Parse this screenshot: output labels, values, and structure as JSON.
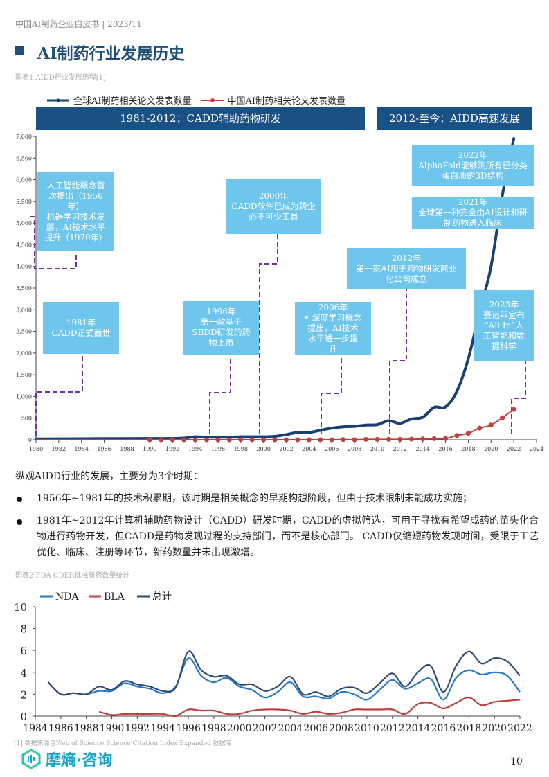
{
  "header": {
    "doc_title": "中国AI制药企业白皮书 | 2023/11",
    "section_title": "AI制药行业发展历史",
    "page_number": "10"
  },
  "figure1": {
    "caption": "图表1 AIDD行业发展历程[1]",
    "legend": [
      "全球AI制药相关论文发表数量",
      "中国AI制药相关论文发表数量"
    ],
    "bands": [
      "1981-2012：CADD辅助药物研发",
      "2012-至今：AIDD高速发展"
    ],
    "notes": [
      "人工智能概念首\n次提出（1956年）\n机器学习技术发\n展，AI技术水平\n提升（1970年）",
      "1981年\nCADD正式面世",
      "1996年\n第一款基于\nSBDD研发的药\n物上市",
      "2000年\nCADD软件已成为药企\n必不可少工具",
      "2006年\n•  深度学习概念\n提出，AI技术\n水平进一步提\n升",
      "2012年\n第一家AI用于药物研发商业\n化公司成立",
      "2022年\nAlphaFold能够测所有已分类\n蛋白质的3D结构",
      "2021年\n全球第一种完全由AI设计和研\n制药物进入临床",
      "2023年\n赛诺菲宣布\n“All In”人\n工智能和数\n据科学"
    ]
  },
  "text": {
    "intro": "纵观AIDD行业的发展，主要分为3个时期：",
    "bullets": [
      "1956年~1981年的技术积累期，该时期是相关概念的早期构想阶段，但由于技术限制未能成功实施；",
      "1981年~2012年计算机辅助药物设计（CADD）研发时期，CADD的虚拟筛选，可用于寻找有希望成药的苗头化合物进行药物开发，但CADD是药物发现过程的支持部门，而不是核心部门。 CADD仅缩短药物发现时间，受限于工艺优化、临床、注册等环节，新药数量并未出现激增。"
    ]
  },
  "figure2": {
    "caption": "图表2 FDA CDER批准新药数量统计"
  },
  "footnote": "[1] 数据来源自Web of Science Science Citation Index Expanded 数据库",
  "logo": "摩熵·咨询",
  "chart_data": [
    {
      "type": "line",
      "title": "AIDD行业发展历程",
      "xlim": [
        1980,
        2024
      ],
      "ylim": [
        0,
        7000
      ],
      "xticks": [
        "1980",
        "1982",
        "1984",
        "1986",
        "1988",
        "1990",
        "1992",
        "1994",
        "1996",
        "1998",
        "2000",
        "2002",
        "2004",
        "2006",
        "2008",
        "2010",
        "2012",
        "2014",
        "2016",
        "2018",
        "2020",
        "2022",
        "2024"
      ],
      "yticks": [
        "0",
        "500",
        "1,000",
        "1,500",
        "2,000",
        "2,500",
        "3,000",
        "3,500",
        "4,000",
        "4,500",
        "5,000",
        "5,500",
        "6,000",
        "6,500",
        "7,000"
      ],
      "series": [
        {
          "name": "全球AI制药相关论文发表数量",
          "color": "#1a3f73",
          "x": [
            1980,
            1990,
            1991,
            1992,
            1993,
            1994,
            1995,
            1996,
            1997,
            1998,
            1999,
            2000,
            2001,
            2002,
            2003,
            2004,
            2005,
            2006,
            2007,
            2008,
            2009,
            2010,
            2011,
            2012,
            2013,
            2014,
            2015,
            2016,
            2017,
            2018,
            2019,
            2020,
            2021,
            2022
          ],
          "values": [
            20,
            30,
            30,
            30,
            40,
            70,
            60,
            60,
            60,
            70,
            70,
            70,
            80,
            120,
            170,
            170,
            220,
            270,
            300,
            310,
            340,
            350,
            440,
            380,
            480,
            520,
            750,
            760,
            1120,
            1870,
            2960,
            4000,
            5650,
            6950
          ]
        },
        {
          "name": "中国AI制药相关论文发表数量",
          "color": "#c0403e",
          "x": [
            1980,
            1990,
            1991,
            1992,
            1993,
            1994,
            1995,
            1996,
            1997,
            1998,
            1999,
            2000,
            2001,
            2002,
            2003,
            2004,
            2005,
            2006,
            2007,
            2008,
            2009,
            2010,
            2011,
            2012,
            2013,
            2014,
            2015,
            2016,
            2017,
            2018,
            2019,
            2020,
            2021,
            2022
          ],
          "values": [
            0,
            0,
            0,
            0,
            0,
            0,
            0,
            0,
            0,
            5,
            0,
            0,
            0,
            0,
            0,
            0,
            0,
            0,
            5,
            0,
            10,
            10,
            10,
            10,
            15,
            20,
            25,
            30,
            100,
            150,
            270,
            340,
            510,
            700
          ]
        }
      ]
    },
    {
      "type": "line",
      "title": "FDA CDER批准新药数量统计",
      "xlim": [
        1984,
        2022
      ],
      "ylim": [
        0,
        10
      ],
      "xticks": [
        "1984",
        "1986",
        "1988",
        "1990",
        "1992",
        "1994",
        "1996",
        "1998",
        "2000",
        "2002",
        "2004",
        "2006",
        "2008",
        "2010",
        "2012",
        "2014",
        "2016",
        "2018",
        "2020",
        "2022"
      ],
      "yticks": [
        "0",
        "2",
        "4",
        "6",
        "8",
        "10"
      ],
      "series": [
        {
          "name": "NDA",
          "color": "#2579c8",
          "x0": 1985,
          "values": [
            3.1,
            2.0,
            2.1,
            2.0,
            2.3,
            2.3,
            3.0,
            2.7,
            2.5,
            2.1,
            2.7,
            5.3,
            3.7,
            3.1,
            3.5,
            2.7,
            2.4,
            1.7,
            2.2,
            3.1,
            1.8,
            1.8,
            1.6,
            2.2,
            2.0,
            1.5,
            2.4,
            3.3,
            2.5,
            3.0,
            3.4,
            1.5,
            3.5,
            4.2,
            3.8,
            4.0,
            3.7,
            2.2
          ]
        },
        {
          "name": "BLA",
          "color": "#c0403e",
          "x0": 1989,
          "values": [
            0.4,
            0.1,
            0.2,
            0.2,
            0.2,
            0.2,
            0.0,
            0.6,
            0.5,
            0.5,
            0.2,
            0.2,
            0.5,
            0.6,
            0.6,
            0.5,
            0.2,
            0.4,
            0.2,
            0.3,
            0.6,
            0.6,
            0.6,
            0.6,
            0.2,
            1.1,
            1.2,
            0.7,
            1.2,
            1.7,
            1.0,
            1.3,
            1.4,
            1.5
          ]
        },
        {
          "name": "总计",
          "color": "#2f4a73",
          "x0": 1985,
          "values": [
            3.1,
            2.0,
            2.1,
            2.0,
            2.7,
            2.4,
            3.2,
            2.9,
            2.7,
            2.3,
            2.6,
            5.9,
            4.2,
            3.6,
            3.7,
            2.9,
            2.9,
            2.3,
            2.7,
            3.6,
            2.0,
            2.2,
            1.8,
            2.5,
            2.6,
            2.1,
            3.0,
            3.9,
            2.7,
            4.0,
            4.6,
            2.2,
            4.6,
            5.9,
            4.8,
            5.3,
            5.0,
            3.7
          ]
        }
      ]
    }
  ]
}
